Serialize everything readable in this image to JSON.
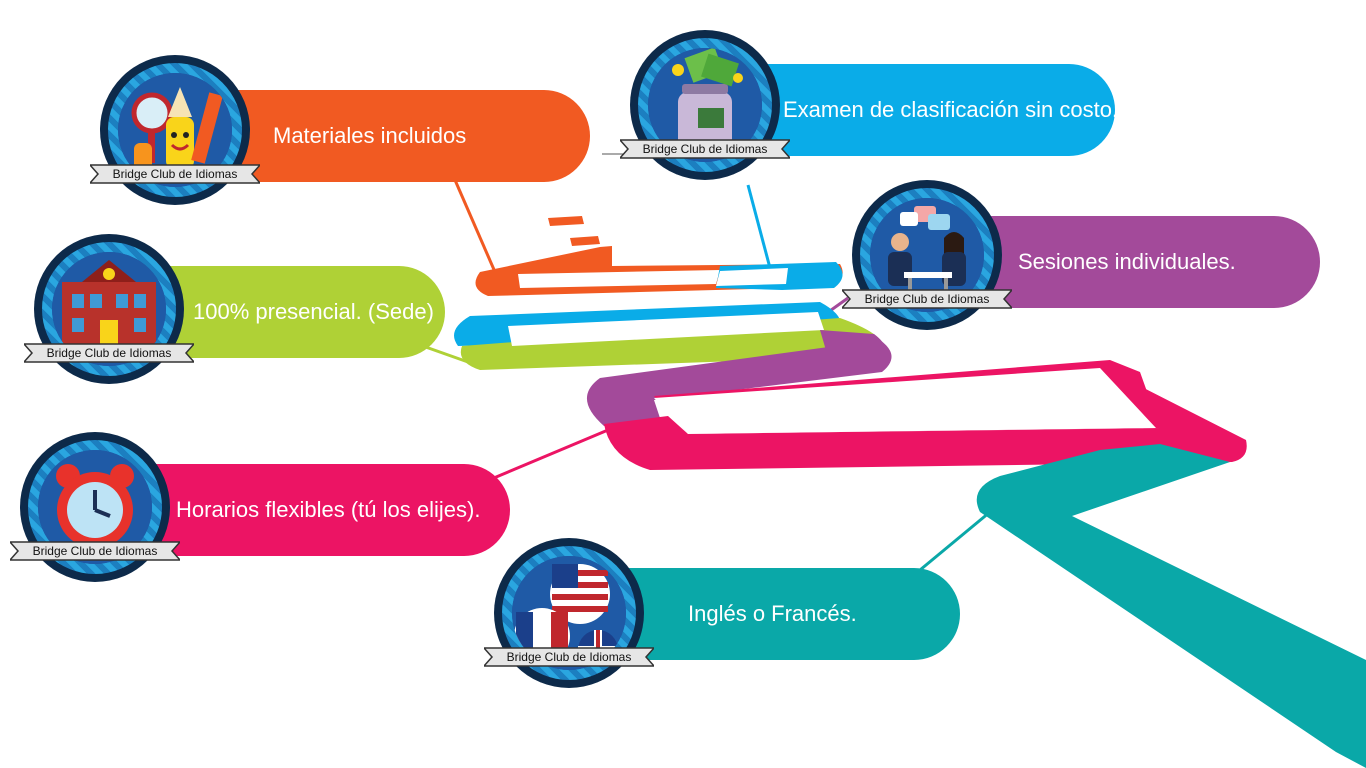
{
  "brand_label": "Bridge Club de Idiomas",
  "colors": {
    "orange": "#f15a22",
    "blue": "#0aace8",
    "purple": "#a34a9a",
    "green": "#afd136",
    "pink": "#ec1464",
    "teal": "#0aa8a8"
  },
  "items": [
    {
      "label": "Materiales incluidos",
      "icon": "school-supplies-icon"
    },
    {
      "label": "Examen de clasificación sin costo.",
      "icon": "money-jar-icon"
    },
    {
      "label": "Sesiones individuales.",
      "icon": "meeting-people-icon"
    },
    {
      "label": "100% presencial. (Sede)",
      "icon": "school-building-icon"
    },
    {
      "label": "Horarios flexibles (tú los elijes).",
      "icon": "alarm-clock-icon"
    },
    {
      "label": "Inglés o Francés.",
      "icon": "flags-icon"
    }
  ]
}
